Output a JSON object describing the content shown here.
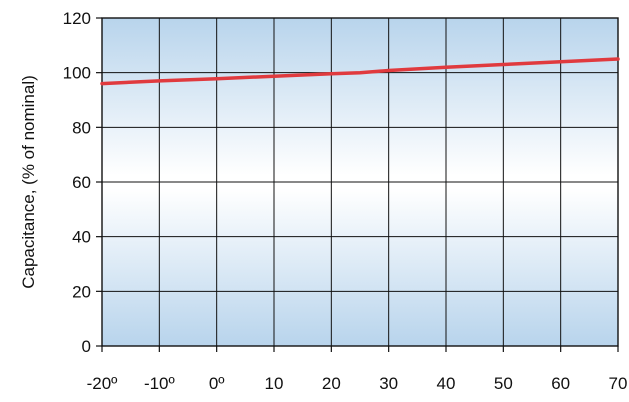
{
  "chart_data": {
    "type": "line",
    "title": "",
    "xlabel": "",
    "ylabel": "Capacitance, (% of nominal)",
    "xlim": [
      -20,
      70
    ],
    "ylim": [
      0,
      120
    ],
    "x_ticks": [
      -20,
      -10,
      0,
      10,
      20,
      30,
      40,
      50,
      60,
      70
    ],
    "x_tick_labels": [
      "-20º",
      "-10º",
      "0º",
      "10",
      "20",
      "30",
      "40",
      "50",
      "60",
      "70"
    ],
    "y_ticks": [
      0,
      20,
      40,
      60,
      80,
      100,
      120
    ],
    "y_tick_labels": [
      "0",
      "20",
      "40",
      "60",
      "80",
      "100",
      "120"
    ],
    "grid": true,
    "series": [
      {
        "color": "#e03a3e",
        "x": [
          -20,
          -10,
          0,
          10,
          20,
          25,
          30,
          40,
          50,
          60,
          70
        ],
        "y": [
          96,
          97,
          97.8,
          98.7,
          99.6,
          100,
          100.8,
          102,
          103,
          104,
          105
        ]
      }
    ],
    "colors": {
      "plot_background_edge": "#b8d4ec",
      "plot_background_center": "#ffffff",
      "grid": "#111111",
      "axis": "#111111"
    }
  }
}
